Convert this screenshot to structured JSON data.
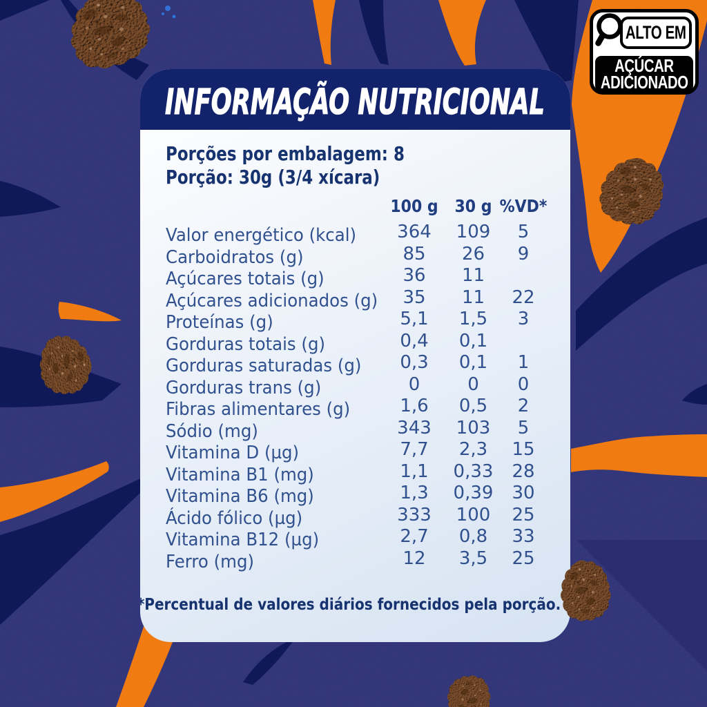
{
  "title": "INFORMAÇÃO NUTRICIONAL",
  "serving": {
    "line1": "Porções por embalagem: 8",
    "line2": "Porção: 30g (3/4 xícara)"
  },
  "table": {
    "columns": [
      "100 g",
      "30 g",
      "%VD*"
    ],
    "rows": [
      {
        "label": "Valor energético (kcal)",
        "per100": "364",
        "per30": "109",
        "vd": "5"
      },
      {
        "label": "Carboidratos (g)",
        "per100": "85",
        "per30": "26",
        "vd": "9"
      },
      {
        "label": "Açúcares totais (g)",
        "per100": "36",
        "per30": "11",
        "vd": ""
      },
      {
        "label": "Açúcares adicionados (g)",
        "per100": "35",
        "per30": "11",
        "vd": "22"
      },
      {
        "label": "Proteínas (g)",
        "per100": "5,1",
        "per30": "1,5",
        "vd": "3"
      },
      {
        "label": "Gorduras totais (g)",
        "per100": "0,4",
        "per30": "0,1",
        "vd": ""
      },
      {
        "label": "Gorduras saturadas (g)",
        "per100": "0,3",
        "per30": "0,1",
        "vd": "1"
      },
      {
        "label": "Gorduras trans (g)",
        "per100": "0",
        "per30": "0",
        "vd": "0"
      },
      {
        "label": "Fibras alimentares (g)",
        "per100": "1,6",
        "per30": "0,5",
        "vd": "2"
      },
      {
        "label": "Sódio (mg)",
        "per100": "343",
        "per30": "103",
        "vd": "5"
      },
      {
        "label": "Vitamina D (µg)",
        "per100": "7,7",
        "per30": "2,3",
        "vd": "15"
      },
      {
        "label": "Vitamina B1 (mg)",
        "per100": "1,1",
        "per30": "0,33",
        "vd": "28"
      },
      {
        "label": "Vitamina B6 (mg)",
        "per100": "1,3",
        "per30": "0,39",
        "vd": "30"
      },
      {
        "label": "Ácido fólico (µg)",
        "per100": "333",
        "per30": "100",
        "vd": "25"
      },
      {
        "label": "Vitamina B12 (µg)",
        "per100": "2,7",
        "per30": "0,8",
        "vd": "33"
      },
      {
        "label": "Ferro (mg)",
        "per100": "12",
        "per30": "3,5",
        "vd": "25"
      }
    ]
  },
  "footnote": "*Percentual de valores diários fornecidos pela porção.",
  "badge": {
    "line1": "ALTO EM",
    "line2": "AÇÚCAR",
    "line3": "ADICIONADO"
  },
  "colors": {
    "header-navy": "#13236B",
    "stripe-navy": "#0C1656",
    "orange": "#F0790E",
    "base-blue": "#303478",
    "text-dark": "#16326F",
    "text-head": "#1F3D7F",
    "text-body": "#30508E",
    "dot-blue": "#2F6FD6"
  }
}
